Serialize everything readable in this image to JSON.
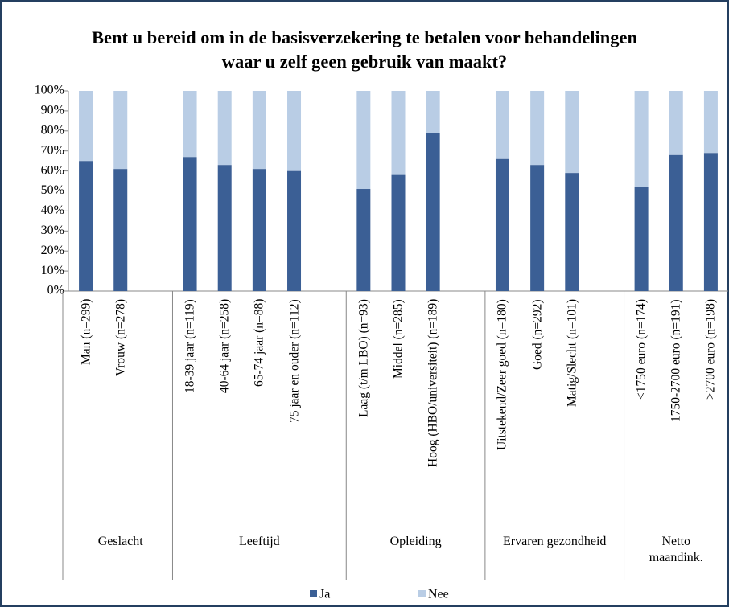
{
  "chart_data": {
    "type": "stacked_bar",
    "title": "Bent u bereid om in de basisverzekering te betalen voor behandelingen waar u zelf geen gebruik van maakt?",
    "categories": [
      "Man (n=299)",
      "Vrouw (n=278)",
      null,
      "18-39 jaar (n=119)",
      "40-64 jaar (n=258)",
      "65-74 jaar (n=88)",
      "75 jaar en ouder (n=112)",
      null,
      "Laag (t/m LBO) (n=93)",
      "Middel (n=285)",
      "Hoog (HBO/universiteit) (n=189)",
      null,
      "Uitstekend/Zeer goed (n=180)",
      "Goed (n=292)",
      "Matig/Slecht (n=101)",
      null,
      "<1750 euro (n=174)",
      "1750-2700 euro (n=191)",
      ">2700 euro (n=198)"
    ],
    "groups": [
      "Geslacht",
      "Leeftijd",
      "Opleiding",
      "Ervaren gezondheid",
      "Netto maandink."
    ],
    "series": [
      {
        "name": "Ja",
        "color": "#3b5f95",
        "values": [
          65,
          61,
          null,
          67,
          63,
          61,
          60,
          null,
          51,
          58,
          79,
          null,
          66,
          63,
          59,
          null,
          52,
          68,
          69
        ]
      },
      {
        "name": "Nee",
        "color": "#b9cde5",
        "values": [
          35,
          39,
          null,
          33,
          37,
          39,
          40,
          null,
          49,
          42,
          21,
          null,
          34,
          37,
          41,
          null,
          48,
          32,
          31
        ]
      }
    ],
    "ylim": [
      0,
      100
    ],
    "yticks": [
      {
        "value": 0,
        "label": "0%"
      },
      {
        "value": 10,
        "label": "10%"
      },
      {
        "value": 20,
        "label": "20%"
      },
      {
        "value": 30,
        "label": "30%"
      },
      {
        "value": 40,
        "label": "40%"
      },
      {
        "value": 50,
        "label": "50%"
      },
      {
        "value": 60,
        "label": "60%"
      },
      {
        "value": 70,
        "label": "70%"
      },
      {
        "value": 80,
        "label": "80%"
      },
      {
        "value": 90,
        "label": "90%"
      },
      {
        "value": 100,
        "label": "100%"
      }
    ],
    "legend": "bottom"
  }
}
